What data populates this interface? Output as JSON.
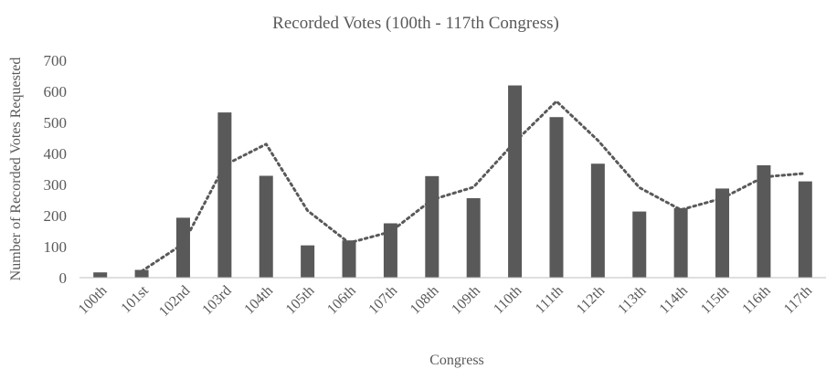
{
  "chart_data": {
    "type": "bar",
    "title": "Recorded Votes (100th - 117th Congress)",
    "xlabel": "Congress",
    "ylabel": "Number of Recorded Votes Requested",
    "ylim": [
      0,
      700
    ],
    "yticks": [
      0,
      100,
      200,
      300,
      400,
      500,
      600,
      700
    ],
    "grid": false,
    "legend": "none",
    "categories": [
      "100th",
      "101st",
      "102nd",
      "103rd",
      "104th",
      "105th",
      "106th",
      "107th",
      "108th",
      "109th",
      "110th",
      "111th",
      "112th",
      "113th",
      "114th",
      "115th",
      "116th",
      "117th"
    ],
    "values": [
      17,
      25,
      193,
      532,
      328,
      104,
      120,
      175,
      327,
      256,
      619,
      517,
      367,
      213,
      224,
      287,
      362,
      310
    ],
    "trendline": {
      "type": "moving-average",
      "period": 2,
      "style": "dotted",
      "values": [
        21,
        109,
        362.5,
        430,
        216,
        112,
        147.5,
        251,
        291.5,
        437.5,
        568,
        442,
        290,
        218.5,
        255.5,
        324.5,
        336
      ]
    },
    "colors": {
      "bar": "#595959",
      "trendline": "#595959",
      "text": "#595959",
      "axis": "#bfbfbf"
    }
  }
}
